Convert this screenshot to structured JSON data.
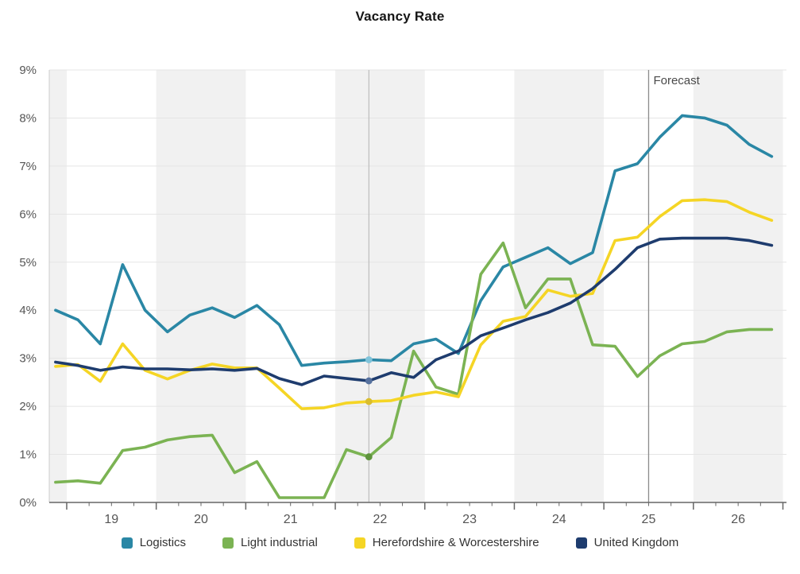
{
  "page": {
    "title": "Vacancy Rate"
  },
  "chart_data": {
    "type": "line",
    "title": "Vacancy Rate",
    "x_axis": {
      "labels": [
        "19",
        "20",
        "21",
        "22",
        "23",
        "24",
        "25",
        "26"
      ],
      "unit": "year",
      "range": [
        2018.805,
        2027.04
      ],
      "major_tick_interval": 1,
      "minor_tick_interval": 0.25
    },
    "y_axis": {
      "tick_labels": [
        "0%",
        "1%",
        "2%",
        "3%",
        "4%",
        "5%",
        "6%",
        "7%",
        "8%",
        "9%"
      ],
      "min": 0,
      "max": 9,
      "grid": true
    },
    "x_quarters": [
      "2018 Q4",
      "2019 Q1",
      "2019 Q2",
      "2019 Q3",
      "2019 Q4",
      "2020 Q1",
      "2020 Q2",
      "2020 Q3",
      "2020 Q4",
      "2021 Q1",
      "2021 Q2",
      "2021 Q3",
      "2021 Q4",
      "2022 Q1",
      "2022 Q2",
      "2022 Q3",
      "2022 Q4",
      "2023 Q1",
      "2023 Q2",
      "2023 Q3",
      "2023 Q4",
      "2024 Q1",
      "2024 Q2",
      "2024 Q3",
      "2024 Q4",
      "2025 Q1",
      "2025 Q2",
      "2025 Q3",
      "2025 Q4",
      "2026 Q1",
      "2026 Q2",
      "2026 Q3",
      "2026 Q4"
    ],
    "series": [
      {
        "name": "Logistics",
        "color": "#2A87A5",
        "marker_color": "#7FC3DA",
        "values": [
          4.0,
          3.8,
          3.3,
          4.95,
          4.0,
          3.55,
          3.9,
          4.05,
          3.85,
          4.1,
          3.7,
          2.85,
          2.9,
          2.93,
          2.97,
          2.95,
          3.3,
          3.4,
          3.1,
          4.2,
          4.9,
          5.1,
          5.3,
          4.97,
          5.2,
          6.9,
          7.05,
          7.6,
          8.05,
          8.0,
          7.85,
          7.45,
          7.2
        ]
      },
      {
        "name": "Light industrial",
        "color": "#7BB353",
        "marker_color": "#5F943D",
        "values": [
          0.42,
          0.45,
          0.4,
          1.08,
          1.15,
          1.3,
          1.37,
          1.4,
          0.62,
          0.85,
          0.1,
          0.1,
          0.1,
          1.1,
          0.95,
          1.35,
          3.15,
          2.4,
          2.25,
          4.75,
          5.4,
          4.05,
          4.65,
          4.65,
          3.28,
          3.25,
          2.62,
          3.05,
          3.3,
          3.35,
          3.55,
          3.6,
          3.6
        ]
      },
      {
        "name": "Herefordshire & Worcestershire",
        "color": "#F5D525",
        "marker_color": "#D9BD2E",
        "values": [
          2.83,
          2.87,
          2.52,
          3.3,
          2.75,
          2.57,
          2.75,
          2.88,
          2.8,
          2.8,
          2.38,
          1.95,
          1.97,
          2.07,
          2.1,
          2.12,
          2.23,
          2.3,
          2.2,
          3.28,
          3.77,
          3.87,
          4.42,
          4.29,
          4.35,
          5.45,
          5.52,
          5.95,
          6.28,
          6.3,
          6.26,
          6.04,
          5.87
        ]
      },
      {
        "name": "United Kingdom",
        "color": "#1E3C6E",
        "marker_color": "#56719E",
        "values": [
          2.92,
          2.85,
          2.75,
          2.82,
          2.78,
          2.78,
          2.76,
          2.78,
          2.75,
          2.79,
          2.58,
          2.45,
          2.63,
          2.58,
          2.53,
          2.7,
          2.6,
          2.97,
          3.15,
          3.47,
          3.63,
          3.8,
          3.95,
          4.15,
          4.45,
          4.85,
          5.3,
          5.48,
          5.5,
          5.5,
          5.5,
          5.45,
          5.35
        ]
      }
    ],
    "annotations": {
      "forecast_label": "Forecast",
      "forecast_x": 2025.5,
      "selected_x": 2022.375,
      "selected_point_index": 14
    },
    "plot_bands": {
      "alternate_fill": "#f1f1f1",
      "period": "yearly"
    },
    "legend_position": "bottom",
    "colors": {
      "gridline": "#e5e5e5",
      "axis": "#666666",
      "axis_label": "#555555",
      "selection_line": "#b3b3b3",
      "forecast_line": "#8c8c8c",
      "forecast_text": "#4a4a4a"
    }
  }
}
